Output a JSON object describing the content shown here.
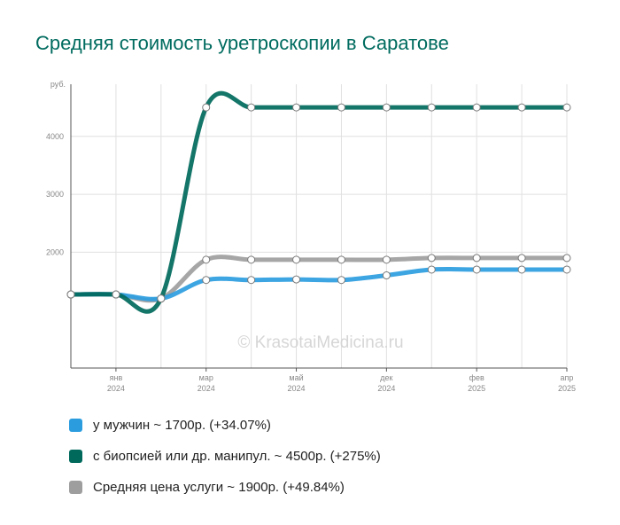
{
  "chart_data": {
    "type": "line",
    "title": "Средняя стоимость уретроскопии в Саратове",
    "ylabel": "руб.",
    "ylim": [
      0,
      4900
    ],
    "y_ticks": [
      "2000",
      "3000",
      "4000"
    ],
    "x_ticks": [
      {
        "month": "янв",
        "year": "2024"
      },
      {
        "month": "мар",
        "year": "2024"
      },
      {
        "month": "май",
        "year": "2024"
      },
      {
        "month": "дек",
        "year": "2024"
      },
      {
        "month": "фев",
        "year": "2025"
      },
      {
        "month": "апр",
        "year": "2025"
      }
    ],
    "grid": true,
    "legend_position": "bottom",
    "watermark": "© KrasotaiMedicina.ru",
    "series": [
      {
        "name": "у мужчин ~ 1700р. (+34.07%)",
        "color": "#2b9ddf",
        "values": [
          1270,
          1270,
          1200,
          1520,
          1520,
          1530,
          1520,
          1600,
          1700,
          1700,
          1700,
          1700
        ]
      },
      {
        "name": "с биопсией или др. манипул. ~ 4500р. (+275%)",
        "color": "#00695c",
        "values": [
          1270,
          1270,
          1200,
          4500,
          4500,
          4500,
          4500,
          4500,
          4500,
          4500,
          4500,
          4500
        ]
      },
      {
        "name": "Средняя цена услуги ~ 1900р. (+49.84%)",
        "color": "#9e9e9e",
        "values": [
          1270,
          1270,
          1200,
          1870,
          1870,
          1870,
          1870,
          1870,
          1900,
          1900,
          1900,
          1900
        ]
      }
    ]
  }
}
